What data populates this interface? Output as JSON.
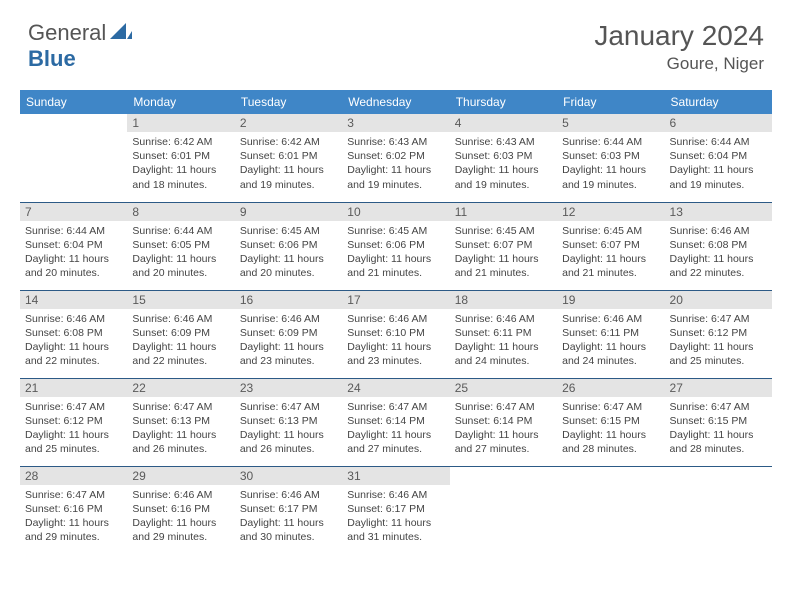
{
  "brand": {
    "part1": "General",
    "part2": "Blue"
  },
  "title": "January 2024",
  "location": "Goure, Niger",
  "colors": {
    "header_bg": "#3f86c7",
    "header_text": "#ffffff",
    "daynum_bg": "#e4e4e4",
    "daynum_text": "#5a5a5a",
    "row_border": "#2c5a86",
    "body_text": "#444444",
    "title_text": "#555555",
    "brand_blue": "#2c6aa3"
  },
  "weekdays": [
    "Sunday",
    "Monday",
    "Tuesday",
    "Wednesday",
    "Thursday",
    "Friday",
    "Saturday"
  ],
  "weeks": [
    [
      null,
      {
        "n": "1",
        "sr": "6:42 AM",
        "ss": "6:01 PM",
        "dl": "11 hours and 18 minutes."
      },
      {
        "n": "2",
        "sr": "6:42 AM",
        "ss": "6:01 PM",
        "dl": "11 hours and 19 minutes."
      },
      {
        "n": "3",
        "sr": "6:43 AM",
        "ss": "6:02 PM",
        "dl": "11 hours and 19 minutes."
      },
      {
        "n": "4",
        "sr": "6:43 AM",
        "ss": "6:03 PM",
        "dl": "11 hours and 19 minutes."
      },
      {
        "n": "5",
        "sr": "6:44 AM",
        "ss": "6:03 PM",
        "dl": "11 hours and 19 minutes."
      },
      {
        "n": "6",
        "sr": "6:44 AM",
        "ss": "6:04 PM",
        "dl": "11 hours and 19 minutes."
      }
    ],
    [
      {
        "n": "7",
        "sr": "6:44 AM",
        "ss": "6:04 PM",
        "dl": "11 hours and 20 minutes."
      },
      {
        "n": "8",
        "sr": "6:44 AM",
        "ss": "6:05 PM",
        "dl": "11 hours and 20 minutes."
      },
      {
        "n": "9",
        "sr": "6:45 AM",
        "ss": "6:06 PM",
        "dl": "11 hours and 20 minutes."
      },
      {
        "n": "10",
        "sr": "6:45 AM",
        "ss": "6:06 PM",
        "dl": "11 hours and 21 minutes."
      },
      {
        "n": "11",
        "sr": "6:45 AM",
        "ss": "6:07 PM",
        "dl": "11 hours and 21 minutes."
      },
      {
        "n": "12",
        "sr": "6:45 AM",
        "ss": "6:07 PM",
        "dl": "11 hours and 21 minutes."
      },
      {
        "n": "13",
        "sr": "6:46 AM",
        "ss": "6:08 PM",
        "dl": "11 hours and 22 minutes."
      }
    ],
    [
      {
        "n": "14",
        "sr": "6:46 AM",
        "ss": "6:08 PM",
        "dl": "11 hours and 22 minutes."
      },
      {
        "n": "15",
        "sr": "6:46 AM",
        "ss": "6:09 PM",
        "dl": "11 hours and 22 minutes."
      },
      {
        "n": "16",
        "sr": "6:46 AM",
        "ss": "6:09 PM",
        "dl": "11 hours and 23 minutes."
      },
      {
        "n": "17",
        "sr": "6:46 AM",
        "ss": "6:10 PM",
        "dl": "11 hours and 23 minutes."
      },
      {
        "n": "18",
        "sr": "6:46 AM",
        "ss": "6:11 PM",
        "dl": "11 hours and 24 minutes."
      },
      {
        "n": "19",
        "sr": "6:46 AM",
        "ss": "6:11 PM",
        "dl": "11 hours and 24 minutes."
      },
      {
        "n": "20",
        "sr": "6:47 AM",
        "ss": "6:12 PM",
        "dl": "11 hours and 25 minutes."
      }
    ],
    [
      {
        "n": "21",
        "sr": "6:47 AM",
        "ss": "6:12 PM",
        "dl": "11 hours and 25 minutes."
      },
      {
        "n": "22",
        "sr": "6:47 AM",
        "ss": "6:13 PM",
        "dl": "11 hours and 26 minutes."
      },
      {
        "n": "23",
        "sr": "6:47 AM",
        "ss": "6:13 PM",
        "dl": "11 hours and 26 minutes."
      },
      {
        "n": "24",
        "sr": "6:47 AM",
        "ss": "6:14 PM",
        "dl": "11 hours and 27 minutes."
      },
      {
        "n": "25",
        "sr": "6:47 AM",
        "ss": "6:14 PM",
        "dl": "11 hours and 27 minutes."
      },
      {
        "n": "26",
        "sr": "6:47 AM",
        "ss": "6:15 PM",
        "dl": "11 hours and 28 minutes."
      },
      {
        "n": "27",
        "sr": "6:47 AM",
        "ss": "6:15 PM",
        "dl": "11 hours and 28 minutes."
      }
    ],
    [
      {
        "n": "28",
        "sr": "6:47 AM",
        "ss": "6:16 PM",
        "dl": "11 hours and 29 minutes."
      },
      {
        "n": "29",
        "sr": "6:46 AM",
        "ss": "6:16 PM",
        "dl": "11 hours and 29 minutes."
      },
      {
        "n": "30",
        "sr": "6:46 AM",
        "ss": "6:17 PM",
        "dl": "11 hours and 30 minutes."
      },
      {
        "n": "31",
        "sr": "6:46 AM",
        "ss": "6:17 PM",
        "dl": "11 hours and 31 minutes."
      },
      null,
      null,
      null
    ]
  ],
  "labels": {
    "sunrise": "Sunrise:",
    "sunset": "Sunset:",
    "daylight": "Daylight:"
  }
}
